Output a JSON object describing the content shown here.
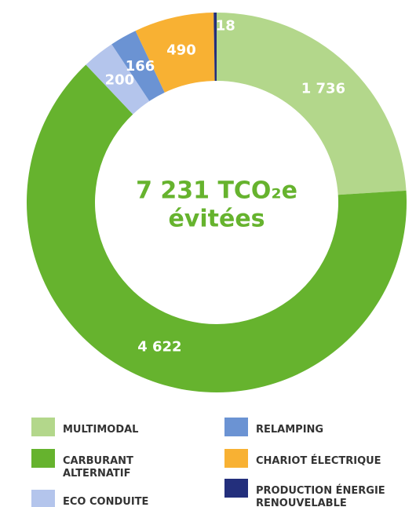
{
  "chart_data": {
    "type": "donut",
    "center_label": "7 231 TCO₂e",
    "center_sublabel": "évitées",
    "categories": [
      "MULTIMODAL",
      "CARBURANT ALTERNATIF",
      "ECO CONDUITE",
      "RELAMPING",
      "CHARIOT ÉLECTRIQUE",
      "PRODUCTION ÉNERGIE RENOUVELABLE"
    ],
    "values": [
      1736,
      4622,
      200,
      166,
      490,
      18
    ],
    "value_labels": [
      "1 736",
      "4 622",
      "200",
      "166",
      "490",
      "18"
    ],
    "colors": [
      "#b3d78b",
      "#66b32e",
      "#b4c5ec",
      "#6b93d3",
      "#f8b133",
      "#232f7c"
    ]
  }
}
